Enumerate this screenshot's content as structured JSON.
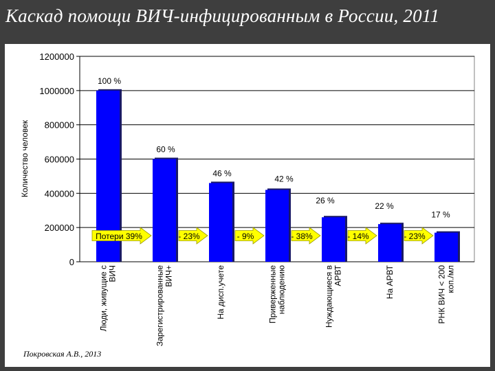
{
  "slide": {
    "title": "Каскад помощи ВИЧ-инфицированным в России, 2011",
    "citation": "Покровская А.В., 2013"
  },
  "colors": {
    "bar": "#0000ff",
    "arrow": "#ffff00",
    "background": "#3e3e3e"
  },
  "chart_data": {
    "type": "bar",
    "title": "Каскад помощи ВИЧ-инфицированным в России, 2011",
    "ylabel": "Количество человек",
    "xlabel": "",
    "ylim": [
      0,
      1200000
    ],
    "yticks": [
      "0",
      "200000",
      "400000",
      "600000",
      "800000",
      "1000000",
      "1200000"
    ],
    "grid": true,
    "categories": [
      [
        "Люди, живущие с",
        "ВИЧ"
      ],
      [
        "Зарегистрированные",
        "ВИЧ+"
      ],
      [
        "На дисп.учете"
      ],
      [
        "Приверженные",
        "наблюдению"
      ],
      [
        "Нуждающиеся в",
        "АРВТ"
      ],
      [
        "На АРВТ"
      ],
      [
        "РНК ВИЧ < 200",
        "коп./мл"
      ]
    ],
    "values": [
      1000000,
      600000,
      460000,
      420000,
      260000,
      220000,
      170000
    ],
    "data_labels": [
      "100 %",
      "60 %",
      "46 %",
      "42 %",
      "26 %",
      "22 %",
      "17 %"
    ],
    "loss_arrows": [
      "Потери 39%",
      "- 23%",
      "- 9%",
      "- 38%",
      "- 14%",
      "- 23%"
    ]
  }
}
